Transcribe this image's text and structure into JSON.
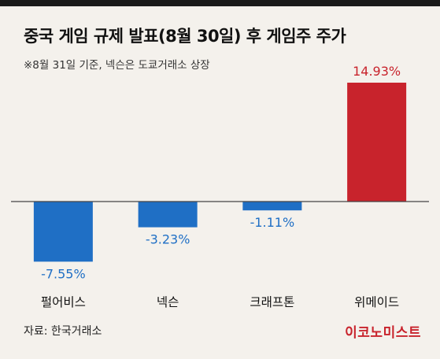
{
  "title": "중국 게임 규제 발표(8월 30일) 후 게임주 주가",
  "subtitle": "※8월 31일 기준, 넥슨은 도쿄거래소 상장",
  "source": "자료: 한국거래소",
  "logo": "이코노미스트",
  "colors": {
    "background": "#f4f1ec",
    "negative_bar": "#1f6fc5",
    "positive_bar": "#c8232c",
    "zero_line": "#444444"
  },
  "chart_data": {
    "type": "bar",
    "categories": [
      "펄어비스",
      "넥슨",
      "크래프톤",
      "위메이드"
    ],
    "values": [
      -7.55,
      -3.23,
      -1.11,
      14.93
    ],
    "value_labels": [
      "-7.55%",
      "-3.23%",
      "-1.11%",
      "14.93%"
    ],
    "unit": "%",
    "ylim": [
      -9.5,
      18.0
    ],
    "grid": false,
    "legend": "none"
  }
}
